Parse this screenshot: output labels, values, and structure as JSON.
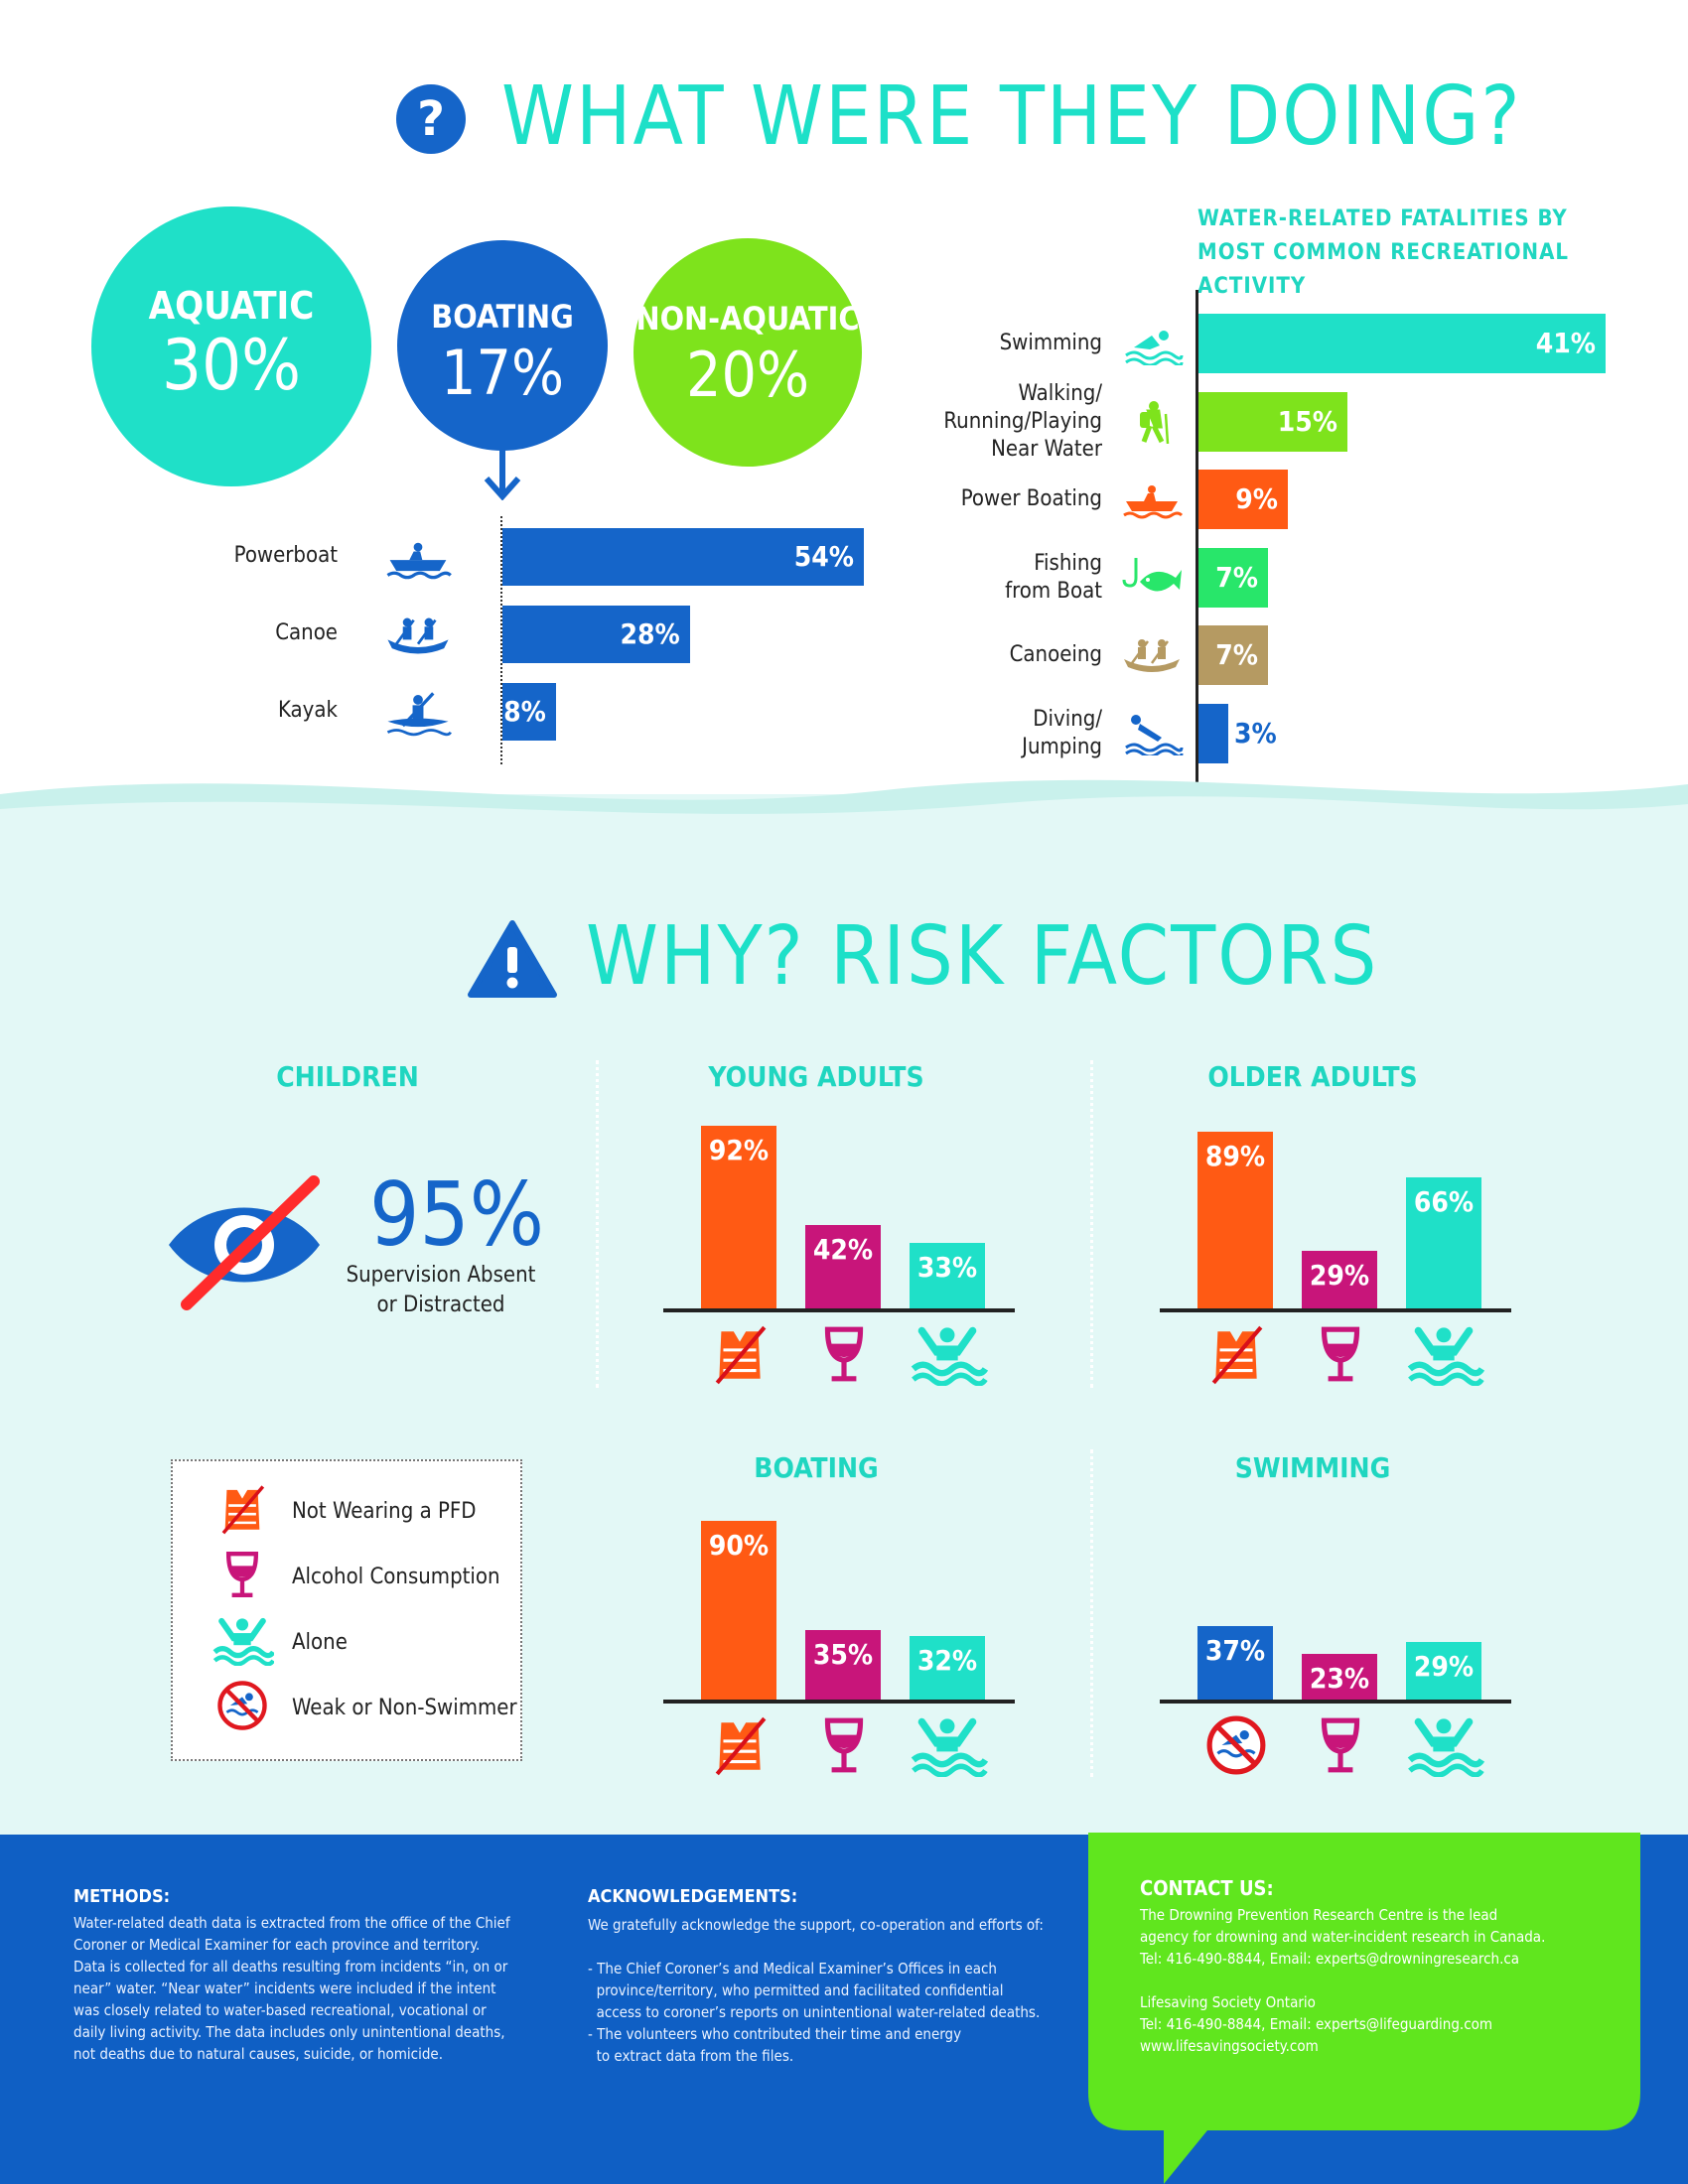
{
  "section1": {
    "title": "WHAT WERE THEY DOING?",
    "circles": [
      {
        "label": "AQUATIC",
        "pct": "30%",
        "color": "#1fe0c8"
      },
      {
        "label": "BOATING",
        "pct": "17%",
        "color": "#1565c9"
      },
      {
        "label": "NON-AQUATIC",
        "pct": "20%",
        "color": "#7ee31c"
      }
    ]
  },
  "colors": {
    "teal": "#1fe0c8",
    "blue": "#1565c9",
    "lime": "#7ee31c",
    "orange": "#ff5a14",
    "green": "#28e66a",
    "tan": "#b59a62",
    "magenta": "#c8157a",
    "footer": "#0f5fc4"
  },
  "chart_data": [
    {
      "type": "bar",
      "orientation": "horizontal",
      "title": "",
      "categories": [
        "Powerboat",
        "Canoe",
        "Kayak"
      ],
      "values": [
        54,
        28,
        8
      ],
      "labels": [
        "54%",
        "28%",
        "8%"
      ],
      "icons": [
        "powerboat-icon",
        "canoe-icon",
        "kayak-icon"
      ],
      "xlim": [
        0,
        54
      ]
    },
    {
      "type": "bar",
      "orientation": "horizontal",
      "title": "WATER-RELATED FATALITIES BY MOST COMMON RECREATIONAL ACTIVITY",
      "categories": [
        "Swimming",
        "Walking/ Running/Playing Near Water",
        "Power Boating",
        "Fishing from Boat",
        "Canoeing",
        "Diving/ Jumping"
      ],
      "category_lines": [
        [
          "Swimming"
        ],
        [
          "Walking/",
          "Running/Playing",
          "Near Water"
        ],
        [
          "Power Boating"
        ],
        [
          "Fishing",
          "from Boat"
        ],
        [
          "Canoeing"
        ],
        [
          "Diving/",
          "Jumping"
        ]
      ],
      "values": [
        41,
        15,
        9,
        7,
        7,
        3
      ],
      "labels": [
        "41%",
        "15%",
        "9%",
        "7%",
        "7%",
        "3%"
      ],
      "colors": [
        "#1fe0c8",
        "#7ee31c",
        "#ff5a14",
        "#28e66a",
        "#b59a62",
        "#1565c9"
      ],
      "icons": [
        "swimmer-icon",
        "hiker-icon",
        "powerboat-icon",
        "fish-hook-icon",
        "canoe-icon",
        "diver-icon"
      ],
      "xlim": [
        0,
        41
      ]
    },
    {
      "type": "bar",
      "group": "YOUNG ADULTS",
      "categories": [
        "Not Wearing a PFD",
        "Alcohol Consumption",
        "Alone"
      ],
      "values": [
        92,
        42,
        33
      ],
      "labels": [
        "92%",
        "42%",
        "33%"
      ]
    },
    {
      "type": "bar",
      "group": "OLDER ADULTS",
      "categories": [
        "Not Wearing a PFD",
        "Alcohol Consumption",
        "Alone"
      ],
      "values": [
        89,
        29,
        66
      ],
      "labels": [
        "89%",
        "29%",
        "66%"
      ]
    },
    {
      "type": "bar",
      "group": "BOATING",
      "categories": [
        "Not Wearing a PFD",
        "Alcohol Consumption",
        "Alone"
      ],
      "values": [
        90,
        35,
        32
      ],
      "labels": [
        "90%",
        "35%",
        "32%"
      ]
    },
    {
      "type": "bar",
      "group": "SWIMMING",
      "categories": [
        "Weak or Non-Swimmer",
        "Alcohol Consumption",
        "Alone"
      ],
      "values": [
        37,
        23,
        29
      ],
      "labels": [
        "37%",
        "23%",
        "29%"
      ]
    }
  ],
  "section2": {
    "title": "WHY? RISK FACTORS",
    "children": {
      "title": "CHILDREN",
      "pct": "95%",
      "caption1": "Supervision Absent",
      "caption2": "or Distracted"
    },
    "legend": [
      "Not Wearing a PFD",
      "Alcohol Consumption",
      "Alone",
      "Weak or Non-Swimmer"
    ]
  },
  "footer": {
    "methods_title": "METHODS:",
    "methods_lines": [
      "Water-related death data is extracted from the office of the Chief",
      "Coroner or Medical Examiner for each province and territory.",
      "Data is collected for all deaths resulting from incidents “in, on or",
      "near” water. “Near water” incidents were included if the intent",
      "was closely related to water-based recreational, vocational or",
      "daily living activity. The data includes only unintentional deaths,",
      "not deaths due to natural causes, suicide, or homicide."
    ],
    "ack_title": "ACKNOWLEDGEMENTS:",
    "ack_lines": [
      "We gratefully acknowledge the support, co-operation and efforts of:",
      "",
      "- The Chief Coroner’s and Medical Examiner’s Offices in each",
      "  province/territory, who permitted and facilitated confidential",
      "  access to coroner’s reports on unintentional water-related deaths.",
      "- The volunteers who contributed their time and energy",
      "  to extract data from the files."
    ],
    "contact_title": "CONTACT US:",
    "contact_lines": [
      "The Drowning Prevention Research Centre is the lead",
      "agency for drowning and water-incident research in Canada.",
      "Tel: 416-490-8844, Email: experts@drowningresearch.ca",
      "",
      "Lifesaving Society Ontario",
      "Tel: 416-490-8844, Email: experts@lifeguarding.com",
      "www.lifesavingsociety.com"
    ]
  }
}
